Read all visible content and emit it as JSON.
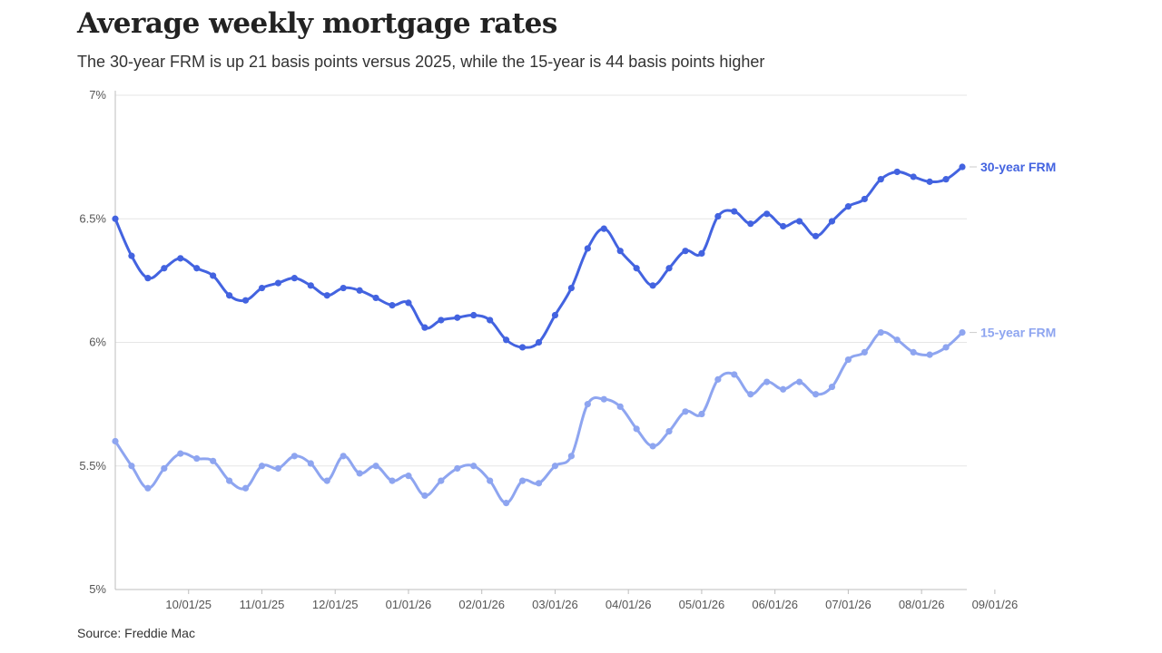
{
  "title": "Average weekly mortgage rates",
  "subtitle": "The 30-year FRM is up 21 basis points versus 2025, while the 15-year is 44 basis points higher",
  "source": "Source: Freddie Mac",
  "chart_data": {
    "type": "line",
    "title": "Average weekly mortgage rates",
    "subtitle": "The 30-year FRM is up 21 basis points versus 2025, while the 15-year is 44 basis points higher",
    "xlabel": "",
    "ylabel": "",
    "ylim": [
      5,
      7
    ],
    "y_ticks": [
      {
        "value": 5,
        "label": "5%"
      },
      {
        "value": 5.5,
        "label": "5.5%"
      },
      {
        "value": 6,
        "label": "6%"
      },
      {
        "value": 6.5,
        "label": "6.5%"
      },
      {
        "value": 7,
        "label": "7%"
      }
    ],
    "x_tick_labels": [
      "10/01/25",
      "11/01/25",
      "12/01/25",
      "01/01/26",
      "02/01/26",
      "03/01/26",
      "04/01/26",
      "05/01/26",
      "06/01/26",
      "07/01/26",
      "08/01/26",
      "09/01/26"
    ],
    "grid": "horizontal",
    "legend": "inline labels at right end of lines",
    "colors": {
      "30-year FRM": "#4363e0",
      "15-year FRM": "#8ea5f0"
    },
    "x_ticks_index": [
      4.5,
      9,
      13.5,
      18,
      22.5,
      27,
      31.5,
      36,
      40.5,
      45,
      49.5,
      54
    ],
    "series": [
      {
        "name": "30-year FRM",
        "color": "#4363e0",
        "values": [
          6.5,
          6.35,
          6.26,
          6.3,
          6.34,
          6.3,
          6.27,
          6.19,
          6.17,
          6.22,
          6.24,
          6.26,
          6.23,
          6.19,
          6.22,
          6.21,
          6.18,
          6.15,
          6.16,
          6.06,
          6.09,
          6.1,
          6.11,
          6.09,
          6.01,
          5.98,
          6.0,
          6.11,
          6.22,
          6.38,
          6.46,
          6.37,
          6.3,
          6.23,
          6.3,
          6.37,
          6.36,
          6.51,
          6.53,
          6.48,
          6.52,
          6.47,
          6.49,
          6.43,
          6.49,
          6.55,
          6.58,
          6.66,
          6.69,
          6.67,
          6.65,
          6.66,
          6.71
        ]
      },
      {
        "name": "15-year FRM",
        "color": "#8ea5f0",
        "values": [
          5.6,
          5.5,
          5.41,
          5.49,
          5.55,
          5.53,
          5.52,
          5.44,
          5.41,
          5.5,
          5.49,
          5.54,
          5.51,
          5.44,
          5.54,
          5.47,
          5.5,
          5.44,
          5.46,
          5.38,
          5.44,
          5.49,
          5.5,
          5.44,
          5.35,
          5.44,
          5.43,
          5.5,
          5.54,
          5.75,
          5.77,
          5.74,
          5.65,
          5.58,
          5.64,
          5.72,
          5.71,
          5.85,
          5.87,
          5.79,
          5.84,
          5.81,
          5.84,
          5.79,
          5.82,
          5.93,
          5.96,
          6.04,
          6.01,
          5.96,
          5.95,
          5.98,
          6.04
        ]
      }
    ]
  }
}
